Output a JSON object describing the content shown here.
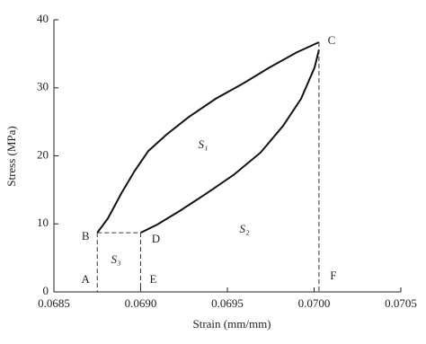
{
  "chart_data": {
    "type": "line",
    "xlabel": "Strain (mm/mm)",
    "ylabel": "Stress (MPa)",
    "xlim": [
      0.0685,
      0.0705
    ],
    "xticks": [
      0.0685,
      {
        "value": 0.069,
        "label": "0.0690"
      },
      0.0695,
      {
        "value": 0.07,
        "label": "0.0700"
      },
      0.0705
    ],
    "ylim": [
      0,
      40
    ],
    "yticks": [
      0,
      10,
      20,
      30,
      40
    ],
    "series": [
      {
        "color": "#111111",
        "x": [
          0.06875,
          0.068811,
          0.068889,
          0.068966,
          0.069044,
          0.069148,
          0.069277,
          0.069433,
          0.069588,
          0.069744,
          0.069899,
          0.070028
        ],
        "values": [
          8.7,
          10.8,
          14.5,
          17.8,
          20.7,
          23.1,
          25.7,
          28.4,
          30.6,
          33.0,
          35.2,
          36.7
        ]
      },
      {
        "color": "#111111",
        "x": [
          0.069,
          0.069096,
          0.069225,
          0.069381,
          0.069536,
          0.069692,
          0.069821,
          0.069925,
          0.070003,
          0.070028
        ],
        "values": [
          8.7,
          9.9,
          11.9,
          14.5,
          17.2,
          20.5,
          24.4,
          28.4,
          33.0,
          35.6
        ]
      }
    ],
    "annotations": [
      "A",
      "B",
      "C",
      "D",
      "E",
      "F",
      "S₁",
      "S₂",
      "S₃"
    ]
  }
}
